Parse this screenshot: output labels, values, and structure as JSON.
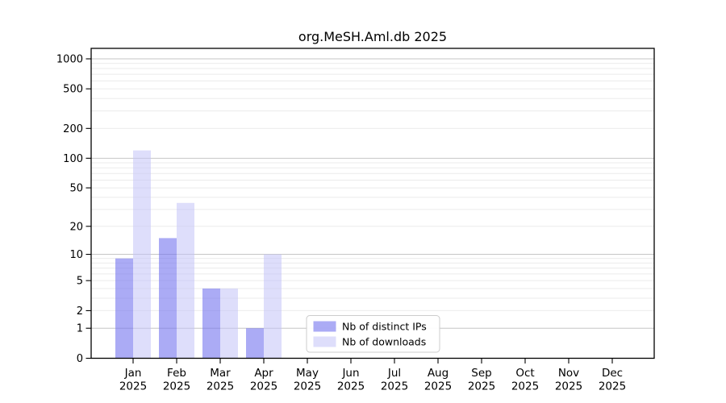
{
  "chart_data": {
    "type": "bar",
    "title": "org.MeSH.Aml.db 2025",
    "x_year": "2025",
    "categories": [
      "Jan",
      "Feb",
      "Mar",
      "Apr",
      "May",
      "Jun",
      "Jul",
      "Aug",
      "Sep",
      "Oct",
      "Nov",
      "Dec"
    ],
    "series": [
      {
        "name": "Nb of distinct IPs",
        "color": "rgba(115,115,238,0.60)",
        "values": [
          9,
          15,
          4,
          1,
          0,
          0,
          0,
          0,
          0,
          0,
          0,
          0
        ]
      },
      {
        "name": "Nb of downloads",
        "color": "rgba(195,195,247,0.55)",
        "values": [
          120,
          35,
          4,
          10,
          0,
          0,
          0,
          0,
          0,
          0,
          0,
          0
        ]
      }
    ],
    "yticks": [
      0,
      1,
      2,
      5,
      10,
      20,
      50,
      100,
      200,
      500,
      1000
    ],
    "scale": "log1p",
    "ylim": [
      0,
      1280
    ],
    "grid": true,
    "legend_position": "lower center",
    "colors": {
      "grid_major": "#c6c6c6",
      "grid_minor": "#ebebeb",
      "spine": "#000000",
      "text": "#000000",
      "legend_border": "#cccccc",
      "legend_bg": "#ffffff"
    }
  }
}
